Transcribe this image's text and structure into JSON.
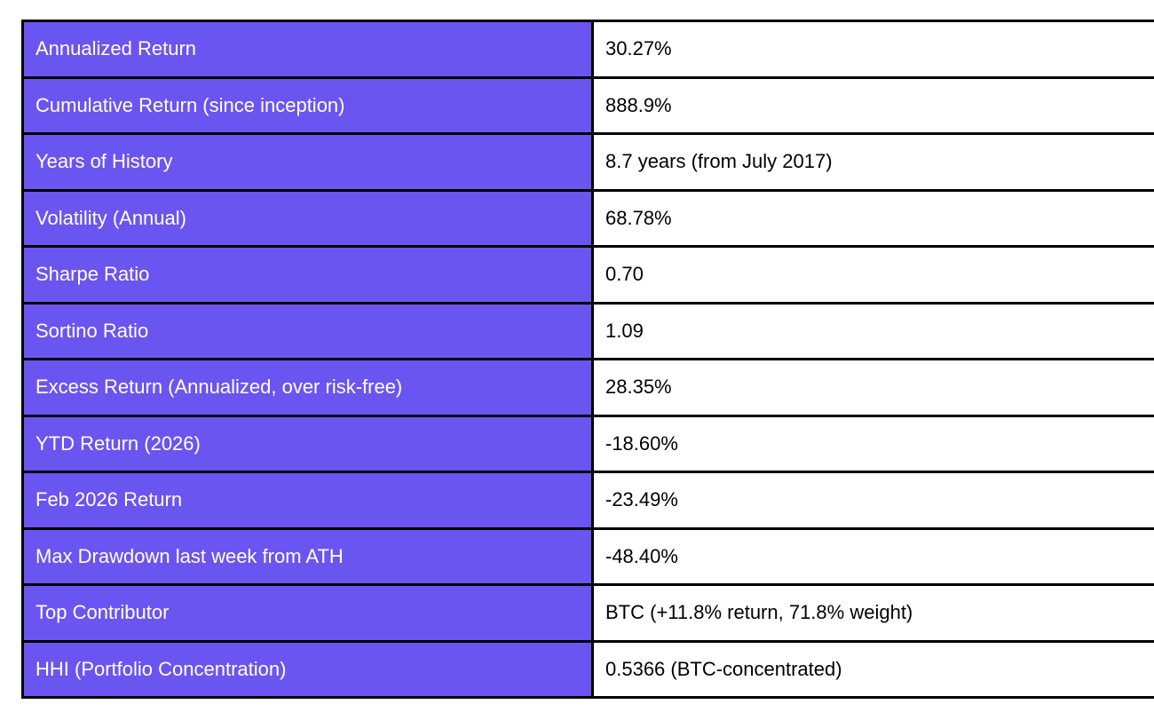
{
  "table": {
    "description": "Portfolio performance metrics table",
    "colors": {
      "label_background": "#6B55F0",
      "label_text": "#FFFFFF",
      "value_background": "#FFFFFF",
      "value_text": "#000000",
      "border": "#000000"
    },
    "rows": [
      {
        "label": "Annualized Return",
        "value": "30.27%"
      },
      {
        "label": "Cumulative Return (since inception)",
        "value": "888.9%"
      },
      {
        "label": "Years of History",
        "value": "8.7 years (from July 2017)"
      },
      {
        "label": "Volatility (Annual)",
        "value": "68.78%"
      },
      {
        "label": "Sharpe Ratio",
        "value": "0.70"
      },
      {
        "label": "Sortino Ratio",
        "value": "1.09"
      },
      {
        "label": "Excess Return (Annualized, over risk-free)",
        "value": "28.35%"
      },
      {
        "label": "YTD Return (2026)",
        "value": "-18.60%"
      },
      {
        "label": "Feb 2026 Return",
        "value": "-23.49%"
      },
      {
        "label": "Max Drawdown last week from ATH",
        "value": "-48.40%"
      },
      {
        "label": "Top Contributor",
        "value": "BTC (+11.8% return, 71.8% weight)"
      },
      {
        "label": "HHI (Portfolio Concentration)",
        "value": "0.5366 (BTC-concentrated)"
      }
    ]
  }
}
